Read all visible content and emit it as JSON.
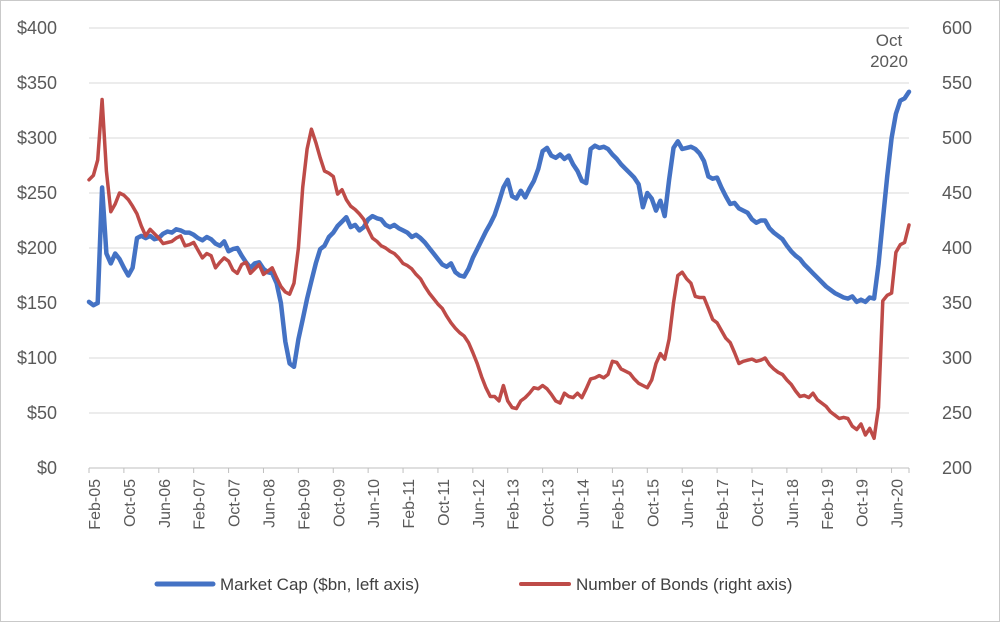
{
  "chart_data": {
    "type": "line",
    "title": "",
    "annotation": {
      "line1": "Oct",
      "line2": "2020"
    },
    "x_axis": {
      "unit": "monthly",
      "first_point": "Feb-2005",
      "last_point": "Oct-2020",
      "tick_labels": [
        "Feb-05",
        "Oct-05",
        "Jun-06",
        "Feb-07",
        "Oct-07",
        "Jun-08",
        "Feb-09",
        "Oct-09",
        "Jun-10",
        "Feb-11",
        "Oct-11",
        "Jun-12",
        "Feb-13",
        "Oct-13",
        "Jun-14",
        "Feb-15",
        "Oct-15",
        "Jun-16",
        "Feb-17",
        "Oct-17",
        "Jun-18",
        "Feb-19",
        "Oct-19",
        "Jun-20"
      ]
    },
    "left_axis": {
      "labels": [
        "$400",
        "$350",
        "$300",
        "$250",
        "$200",
        "$150",
        "$100",
        "$50",
        "$0"
      ],
      "min": 0,
      "max": 400,
      "step": 50
    },
    "right_axis": {
      "labels": [
        "600",
        "550",
        "500",
        "450",
        "400",
        "350",
        "300",
        "250",
        "200"
      ],
      "min": 200,
      "max": 600,
      "step": 50
    },
    "grid": "horizontal",
    "legend_position": "bottom",
    "series": [
      {
        "name": "Market Cap ($bn, left axis)",
        "axis": "left",
        "color": "#4472C4",
        "values": [
          151,
          148,
          150,
          255,
          195,
          186,
          195,
          190,
          182,
          175,
          182,
          209,
          211,
          209,
          211,
          208,
          209,
          213,
          215,
          214,
          217,
          216,
          214,
          214,
          212,
          209,
          207,
          210,
          208,
          204,
          202,
          206,
          197,
          199,
          200,
          193,
          187,
          182,
          186,
          187,
          181,
          178,
          177,
          168,
          150,
          115,
          95,
          92,
          117,
          135,
          154,
          170,
          186,
          199,
          202,
          210,
          214,
          220,
          224,
          228,
          219,
          221,
          216,
          219,
          226,
          229,
          227,
          226,
          221,
          219,
          221,
          218,
          216,
          214,
          210,
          212,
          209,
          205,
          200,
          195,
          190,
          185,
          183,
          186,
          178,
          175,
          174,
          181,
          191,
          199,
          207,
          215,
          222,
          230,
          242,
          255,
          262,
          247,
          245,
          252,
          246,
          254,
          261,
          272,
          288,
          291,
          284,
          282,
          285,
          281,
          284,
          276,
          270,
          261,
          259,
          290,
          293,
          291,
          292,
          290,
          285,
          281,
          276,
          272,
          268,
          264,
          258,
          237,
          250,
          245,
          234,
          243,
          229,
          262,
          291,
          297,
          290,
          291,
          292,
          290,
          286,
          279,
          265,
          263,
          264,
          255,
          247,
          240,
          241,
          236,
          234,
          232,
          226,
          223,
          225,
          225,
          218,
          214,
          211,
          208,
          202,
          197,
          193,
          190,
          185,
          181,
          177,
          173,
          169,
          165,
          162,
          159,
          157,
          155,
          154,
          156,
          151,
          153,
          151,
          155,
          154,
          185,
          225,
          265,
          300,
          322,
          334,
          336,
          342
        ]
      },
      {
        "name": "Number of Bonds (right axis)",
        "axis": "right",
        "color": "#BE4B48",
        "values": [
          462,
          466,
          480,
          535,
          470,
          433,
          440,
          450,
          448,
          444,
          438,
          431,
          420,
          411,
          417,
          413,
          409,
          404,
          405,
          406,
          409,
          411,
          402,
          403,
          405,
          398,
          391,
          395,
          393,
          382,
          387,
          391,
          388,
          380,
          377,
          385,
          387,
          377,
          381,
          385,
          376,
          379,
          382,
          373,
          365,
          360,
          358,
          368,
          400,
          455,
          490,
          508,
          496,
          482,
          470,
          468,
          465,
          449,
          453,
          444,
          438,
          435,
          431,
          426,
          417,
          409,
          406,
          402,
          400,
          397,
          395,
          391,
          386,
          384,
          381,
          376,
          372,
          365,
          359,
          354,
          349,
          345,
          338,
          332,
          327,
          323,
          320,
          314,
          305,
          295,
          283,
          273,
          265,
          265,
          261,
          275,
          261,
          255,
          254,
          261,
          264,
          268,
          273,
          272,
          275,
          272,
          267,
          261,
          259,
          268,
          265,
          264,
          268,
          264,
          272,
          281,
          282,
          284,
          282,
          285,
          297,
          296,
          290,
          288,
          286,
          281,
          277,
          275,
          273,
          280,
          295,
          304,
          299,
          317,
          350,
          375,
          378,
          372,
          368,
          356,
          355,
          355,
          345,
          335,
          332,
          325,
          318,
          314,
          305,
          295,
          297,
          298,
          299,
          297,
          298,
          300,
          294,
          290,
          287,
          285,
          280,
          276,
          270,
          265,
          266,
          264,
          268,
          262,
          259,
          256,
          251,
          248,
          245,
          246,
          245,
          238,
          235,
          240,
          230,
          236,
          227,
          255,
          352,
          357,
          359,
          396,
          403,
          405,
          421
        ]
      }
    ],
    "colors": {
      "gridline": "#D9D9D9",
      "axis_line": "#BFBFBF",
      "axis_text": "#595959",
      "legend_text": "#404040"
    }
  }
}
